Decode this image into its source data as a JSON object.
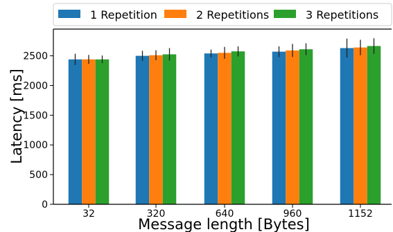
{
  "chart_data": {
    "type": "bar",
    "categories": [
      "32",
      "320",
      "640",
      "960",
      "1152"
    ],
    "series": [
      {
        "name": "1 Repetition",
        "color": "#1f77b4",
        "values": [
          2440,
          2500,
          2540,
          2570,
          2630
        ],
        "errors": [
          95,
          85,
          65,
          90,
          160
        ]
      },
      {
        "name": "2 Repetitions",
        "color": "#ff7f0e",
        "values": [
          2440,
          2510,
          2550,
          2590,
          2640
        ],
        "errors": [
          75,
          85,
          100,
          110,
          130
        ]
      },
      {
        "name": "3 Repetitions",
        "color": "#2ca02c",
        "values": [
          2440,
          2525,
          2575,
          2610,
          2665
        ],
        "errors": [
          65,
          105,
          85,
          100,
          130
        ]
      }
    ],
    "xlabel": "Message length [Bytes]",
    "ylabel": "Latency [ms]",
    "ylim": [
      0,
      2950
    ],
    "yticks": [
      0,
      500,
      1000,
      1500,
      2000,
      2500
    ],
    "legend_position": "top",
    "grid": false
  }
}
